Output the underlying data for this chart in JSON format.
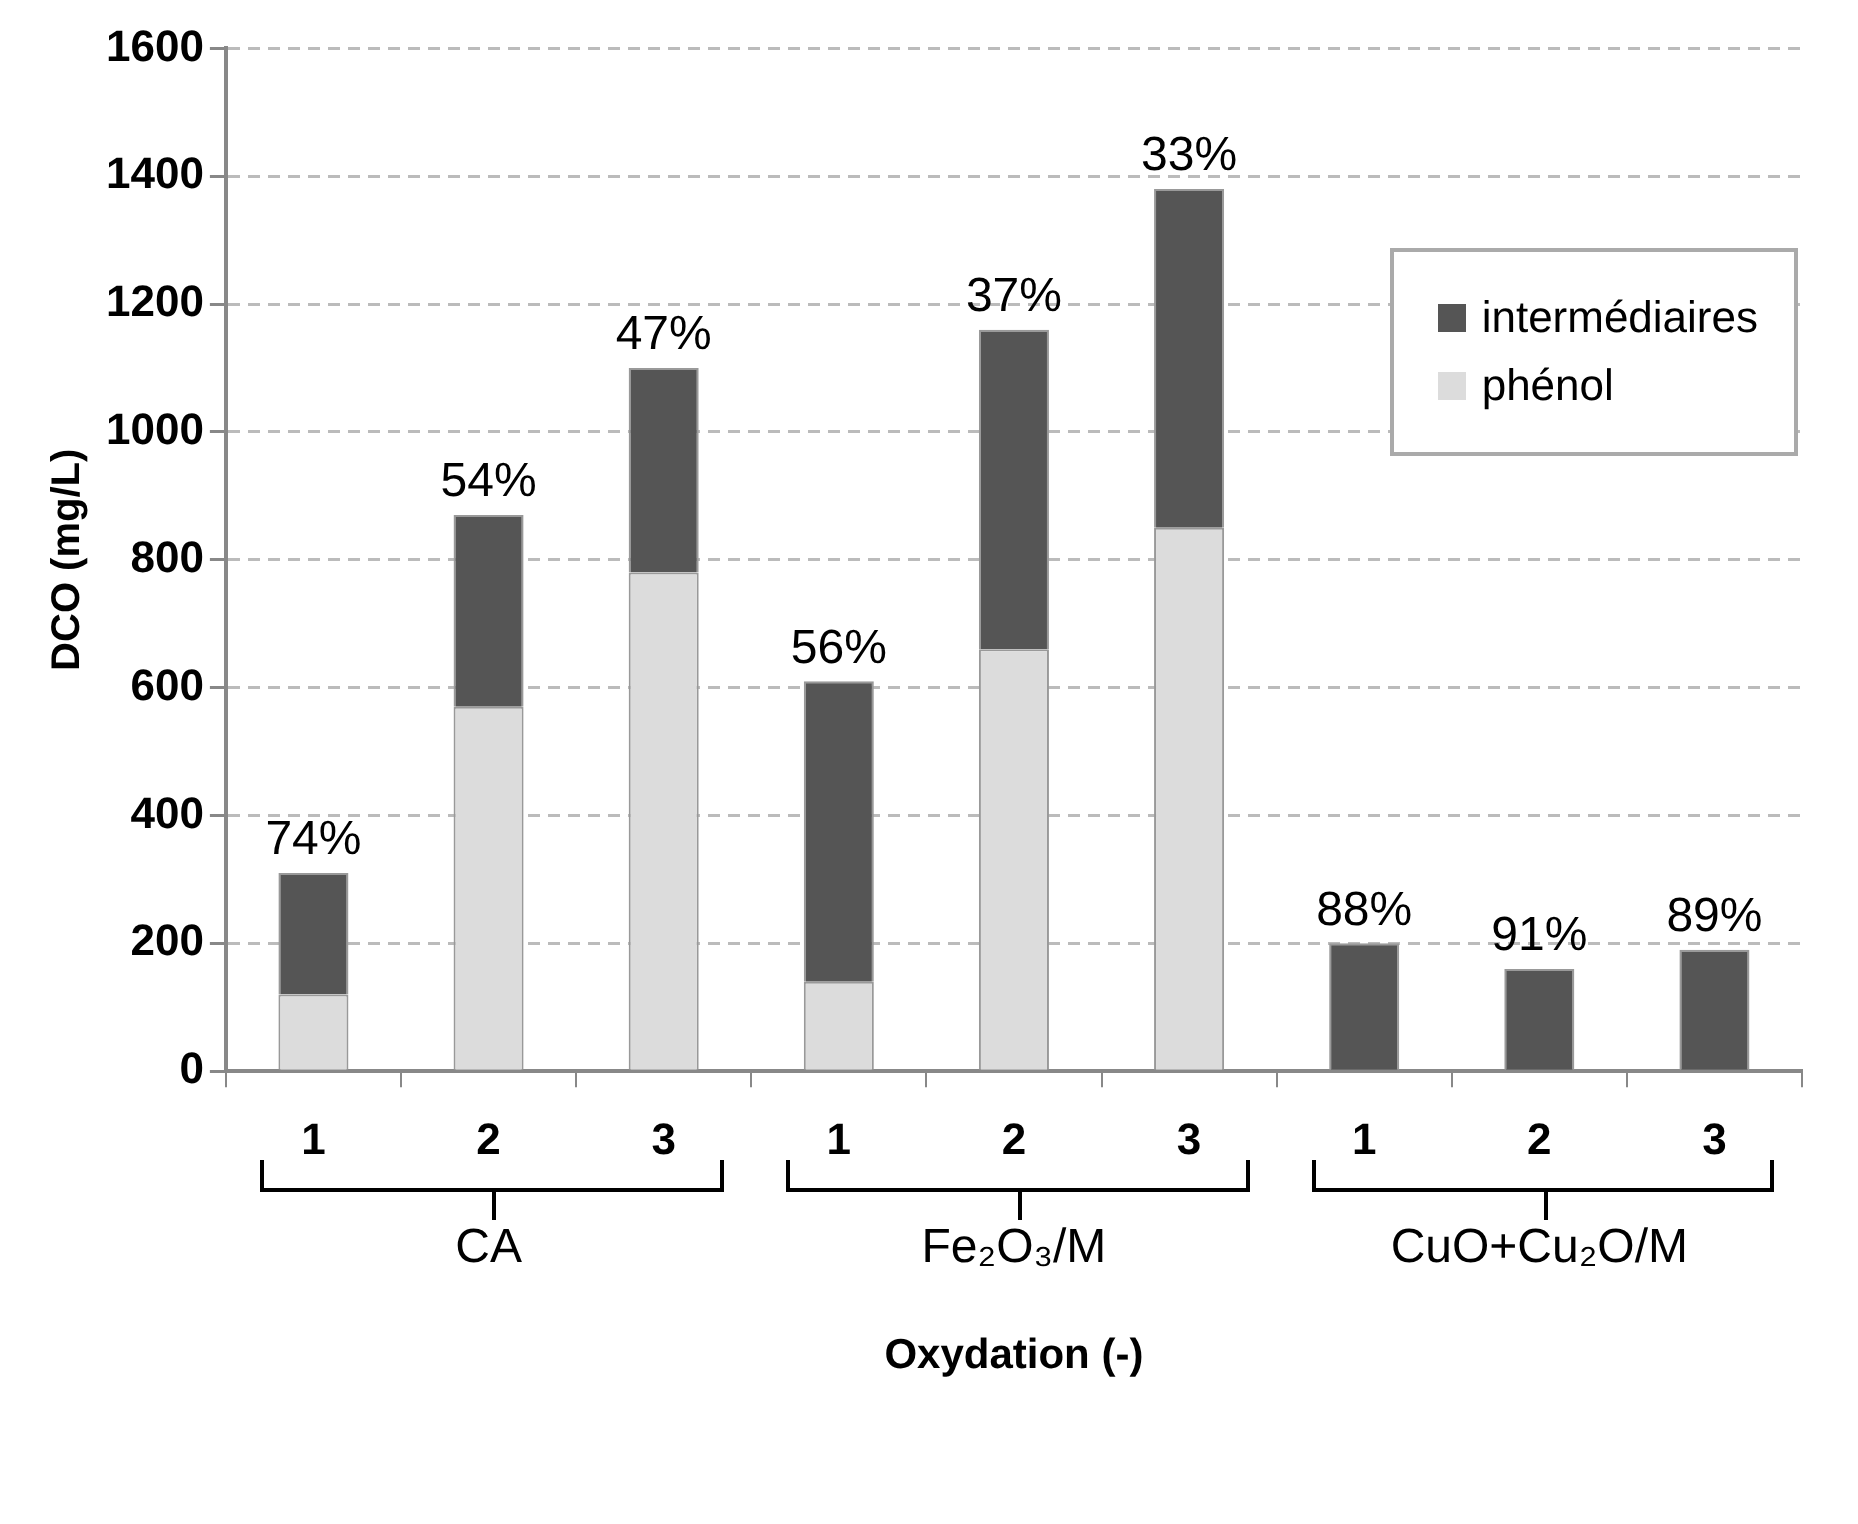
{
  "chart_data": {
    "type": "bar",
    "stacked": true,
    "xlabel": "Oxydation (-)",
    "ylabel": "DCO (mg/L)",
    "categories": [
      "1",
      "2",
      "3",
      "1",
      "2",
      "3",
      "1",
      "2",
      "3"
    ],
    "series": [
      {
        "name": "phénol",
        "color": "#dcdcdc",
        "values": [
          120,
          570,
          780,
          140,
          660,
          850,
          0,
          0,
          0
        ]
      },
      {
        "name": "intermédiaires",
        "color": "#555555",
        "values": [
          190,
          300,
          320,
          470,
          500,
          530,
          200,
          160,
          190
        ]
      }
    ],
    "annotations": [
      "CA",
      "Fe₂O₃/M",
      "CuO+Cu₂O/M",
      {
        "text": "74%",
        "y": 310
      },
      {
        "text": "54%",
        "y": 870
      },
      {
        "text": "47%",
        "y": 1100
      },
      {
        "text": "56%",
        "y": 610
      },
      {
        "text": "37%",
        "y": 1160
      },
      {
        "text": "33%",
        "y": 1380
      },
      {
        "text": "88%",
        "y": 200
      },
      {
        "text": "91%",
        "y": 160
      },
      {
        "text": "89%",
        "y": 190
      }
    ],
    "ylim": [
      0,
      1600
    ],
    "yticks": [
      0,
      200,
      400,
      600,
      800,
      1000,
      1200,
      1400,
      1600
    ],
    "grid": "y",
    "legend": "top right"
  }
}
